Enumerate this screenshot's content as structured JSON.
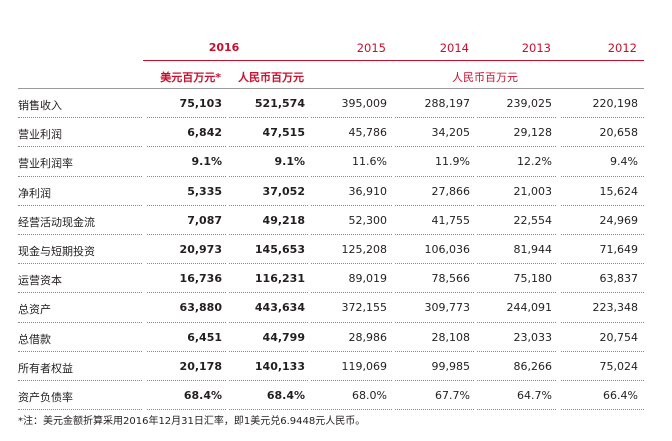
{
  "header": {
    "year_2016": "2016",
    "usd_unit": "美元百万元*",
    "rmb_unit": "人民币百万元",
    "years": [
      "2015",
      "2014",
      "2013",
      "2012"
    ],
    "history_unit": "人民币百万元"
  },
  "rows": [
    {
      "label": "销售收入",
      "usd": "75,103",
      "rmb": "521,574",
      "y2015": "395,009",
      "y2014": "288,197",
      "y2013": "239,025",
      "y2012": "220,198"
    },
    {
      "label": "营业利润",
      "usd": "6,842",
      "rmb": "47,515",
      "y2015": "45,786",
      "y2014": "34,205",
      "y2013": "29,128",
      "y2012": "20,658"
    },
    {
      "label": "营业利润率",
      "usd": "9.1%",
      "rmb": "9.1%",
      "y2015": "11.6%",
      "y2014": "11.9%",
      "y2013": "12.2%",
      "y2012": "9.4%"
    },
    {
      "label": "净利润",
      "usd": "5,335",
      "rmb": "37,052",
      "y2015": "36,910",
      "y2014": "27,866",
      "y2013": "21,003",
      "y2012": "15,624"
    },
    {
      "label": "经营活动现金流",
      "usd": "7,087",
      "rmb": "49,218",
      "y2015": "52,300",
      "y2014": "41,755",
      "y2013": "22,554",
      "y2012": "24,969"
    },
    {
      "label": "现金与短期投资",
      "usd": "20,973",
      "rmb": "145,653",
      "y2015": "125,208",
      "y2014": "106,036",
      "y2013": "81,944",
      "y2012": "71,649"
    },
    {
      "label": "运营资本",
      "usd": "16,736",
      "rmb": "116,231",
      "y2015": "89,019",
      "y2014": "78,566",
      "y2013": "75,180",
      "y2012": "63,837"
    },
    {
      "label": "总资产",
      "usd": "63,880",
      "rmb": "443,634",
      "y2015": "372,155",
      "y2014": "309,773",
      "y2013": "244,091",
      "y2012": "223,348"
    },
    {
      "label": "总借款",
      "usd": "6,451",
      "rmb": "44,799",
      "y2015": "28,986",
      "y2014": "28,108",
      "y2013": "23,033",
      "y2012": "20,754"
    },
    {
      "label": "所有者权益",
      "usd": "20,178",
      "rmb": "140,133",
      "y2015": "119,069",
      "y2014": "99,985",
      "y2013": "86,266",
      "y2012": "75,024"
    },
    {
      "label": "资产负债率",
      "usd": "68.4%",
      "rmb": "68.4%",
      "y2015": "68.0%",
      "y2014": "67.7%",
      "y2013": "64.7%",
      "y2012": "66.4%"
    }
  ],
  "footnote": "*注：美元金额折算采用2016年12月31日汇率，即1美元兑6.9448元人民币。"
}
